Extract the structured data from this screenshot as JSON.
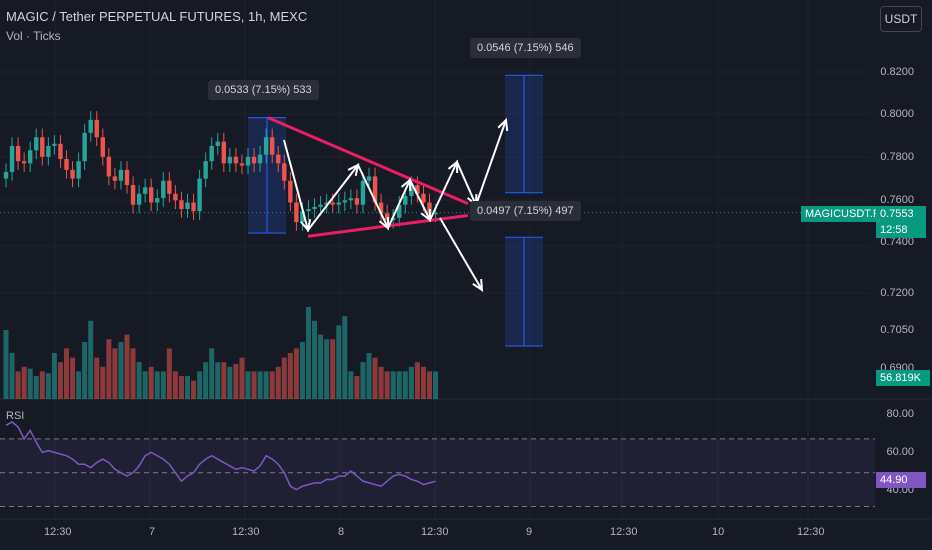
{
  "header": {
    "title": "MAGIC / Tether PERPETUAL FUTURES, 1h, MEXC",
    "subtitle": "Vol · Ticks",
    "currency": "USDT"
  },
  "price_axis": [
    "0.8200",
    "0.8000",
    "0.7800",
    "0.7600",
    "0.7400",
    "0.7200",
    "0.7050",
    "0.6900"
  ],
  "rsi_axis": [
    "80.00",
    "60.00",
    "40.00"
  ],
  "rsi_label": "RSI",
  "time_axis": [
    "12:30",
    "7",
    "12:30",
    "8",
    "12:30",
    "9",
    "12:30",
    "10",
    "12:30"
  ],
  "badges": {
    "symbol": "MAGICUSDT.P",
    "last_price": "0.7553",
    "countdown": "12:58",
    "volume": "56.819K",
    "rsi_value": "44.90"
  },
  "measure_labels": [
    "0.0533 (7.15%) 533",
    "0.0546 (7.15%) 546",
    "0.0497 (7.15%) 497"
  ],
  "colors": {
    "up": "#26a69a",
    "down": "#ef5350",
    "pattern_line": "#e91e63",
    "rsi_line": "#7e57c2",
    "measure_box": "#2962ff"
  },
  "chart_data": {
    "type": "candlestick",
    "title": "MAGIC / Tether PERPETUAL FUTURES, 1h, MEXC",
    "current_price": 0.7553,
    "price_range": [
      0.69,
      0.82
    ],
    "close": [
      0.774,
      0.786,
      0.779,
      0.778,
      0.784,
      0.79,
      0.781,
      0.786,
      0.787,
      0.78,
      0.775,
      0.771,
      0.779,
      0.792,
      0.798,
      0.79,
      0.781,
      0.772,
      0.77,
      0.775,
      0.768,
      0.759,
      0.764,
      0.767,
      0.76,
      0.762,
      0.77,
      0.764,
      0.761,
      0.757,
      0.76,
      0.756,
      0.771,
      0.779,
      0.786,
      0.788,
      0.778,
      0.781,
      0.778,
      0.777,
      0.781,
      0.778,
      0.782,
      0.79,
      0.782,
      0.778,
      0.77,
      0.76,
      0.751,
      0.756,
      0.757,
      0.758,
      0.759,
      0.76,
      0.759,
      0.76,
      0.761,
      0.762,
      0.759,
      0.77,
      0.772,
      0.76,
      0.755,
      0.752,
      0.753,
      0.759,
      0.763,
      0.768,
      0.764,
      0.76,
      0.755,
      0.7553
    ],
    "volume": [
      0.75,
      0.5,
      0.3,
      0.35,
      0.33,
      0.25,
      0.3,
      0.28,
      0.5,
      0.4,
      0.55,
      0.45,
      0.3,
      0.62,
      0.85,
      0.45,
      0.35,
      0.65,
      0.55,
      0.62,
      0.7,
      0.55,
      0.4,
      0.3,
      0.35,
      0.3,
      0.3,
      0.55,
      0.3,
      0.25,
      0.25,
      0.2,
      0.3,
      0.4,
      0.55,
      0.4,
      0.4,
      0.35,
      0.38,
      0.45,
      0.3,
      0.3,
      0.3,
      0.3,
      0.3,
      0.35,
      0.45,
      0.5,
      0.55,
      0.62,
      1.0,
      0.85,
      0.7,
      0.65,
      0.65,
      0.8,
      0.9,
      0.3,
      0.25,
      0.4,
      0.5,
      0.45,
      0.35,
      0.3,
      0.3,
      0.3,
      0.3,
      0.35,
      0.4,
      0.35,
      0.3,
      0.3
    ],
    "rsi": [
      78,
      80,
      77,
      70,
      75,
      68,
      62,
      63,
      62,
      61,
      60,
      58,
      55,
      55,
      53,
      56,
      58,
      56,
      52,
      50,
      48,
      50,
      54,
      60,
      62,
      60,
      58,
      55,
      50,
      45,
      48,
      50,
      55,
      58,
      60,
      58,
      56,
      54,
      52,
      53,
      52,
      51,
      54,
      60,
      58,
      55,
      50,
      42,
      40,
      42,
      43,
      44,
      44,
      46,
      46,
      48,
      48,
      51,
      48,
      45,
      44,
      43,
      42,
      45,
      48,
      49,
      48,
      46,
      45,
      43,
      44,
      44.9
    ],
    "rsi_range": [
      25,
      90
    ],
    "rsi_levels": [
      70,
      50,
      30
    ],
    "measures": [
      {
        "change": 0.0533,
        "percent": 7.15,
        "ticks": 533,
        "from": 0.746,
        "to": 0.799
      },
      {
        "change": 0.0546,
        "percent": 7.15,
        "ticks": 546,
        "from": 0.7645,
        "to": 0.8185
      },
      {
        "change": 0.0497,
        "percent": 7.15,
        "ticks": 497,
        "from": 0.744,
        "to": 0.694
      }
    ],
    "triangle": {
      "upper": [
        0.799,
        0.7595
      ],
      "lower": [
        0.7445,
        0.754
      ]
    }
  }
}
